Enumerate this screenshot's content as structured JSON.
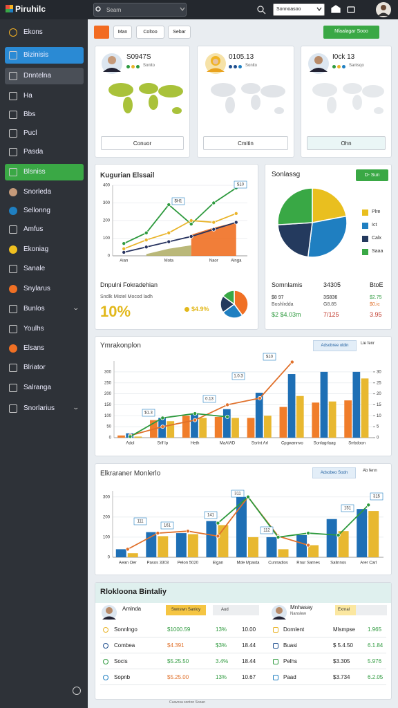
{
  "header": {
    "logo": "Piruhilc",
    "search": "Searn",
    "select": "Sonnoasoo"
  },
  "sidebar": [
    "Ekons",
    "Bizinisis",
    "Dnntelna",
    "Ha",
    "Bbs",
    "Pucl",
    "Pasda",
    "Blsniss",
    "Snorleda",
    "Sellonng",
    "Amfus",
    "Ekoniag",
    "Sanale",
    "Snylarus",
    "Bunlos",
    "Youlhs",
    "Elsans",
    "Blriator",
    "Salranga",
    "Snorlarius"
  ],
  "toolbar": {
    "buttons": [
      "Man",
      "Coltoo",
      "Sebar"
    ],
    "action": "Nfaalagar Sooo"
  },
  "profile_cards": [
    {
      "value": "S0947S",
      "sub": "Sonlto",
      "button": "Conuor"
    },
    {
      "value": "0105.13",
      "sub": "Sonlto",
      "button": "Cmitin"
    },
    {
      "value": "I0ck 13",
      "sub": "Sanlsqo",
      "button": "Ohn"
    }
  ],
  "panel": {
    "title": "Dnpulni Fokradehian",
    "subtitle": "Sndlk Mistel Mocod ladh",
    "big": "10%",
    "note": "$4.9%"
  },
  "summary": {
    "title": "Sonlassg",
    "button": "D- Sun",
    "table": [
      [
        "Somnlamis",
        "34305",
        "BtoE"
      ],
      [
        "$8 97",
        "3S836",
        "$2.75"
      ],
      [
        "Boshlrdda",
        "G8.85",
        "$0.ic"
      ],
      [
        "$2 $4.03m",
        "7/125",
        "3.95"
      ]
    ]
  },
  "people": {
    "title": "Rlokloona Bintaliy",
    "profiles": [
      {
        "name": "Amlnda",
        "tag": "Swnswn Sanloy",
        "extra": "Aud"
      },
      {
        "name": "Mnhasay",
        "sub": "Nanslew",
        "tag": "Exrnal"
      }
    ],
    "rows": [
      [
        "Sonnlngo",
        "$1000.59",
        "13%",
        "10.00",
        "Dornlent",
        "Mlsmpse",
        "1.965"
      ],
      [
        "Combea",
        "$4.391",
        "$3%",
        "18.44",
        "Buasi",
        "$ 5.4.50",
        "6.1.84"
      ],
      [
        "Socis",
        "$5.25.50",
        "3.4%",
        "18.44",
        "Pelhs",
        "$3.305",
        "5.976"
      ],
      [
        "Sopnb",
        "$5.25.00",
        "13%",
        "10.67",
        "Paad",
        "$3.734",
        "6.2.05"
      ]
    ]
  },
  "footer": "Cuavosa sonton Sooan",
  "chart_data": [
    {
      "type": "line",
      "title": "Kugurian Elssail",
      "categories": [
        "Aian",
        null,
        "Mota",
        null,
        "Naor",
        "Alnga"
      ],
      "ylim": [
        0,
        400
      ],
      "yticks": [
        0,
        100,
        200,
        300,
        400
      ],
      "annotations": [
        "$10",
        "$H1"
      ],
      "series": [
        {
          "color": "#b3b06a",
          "area": true,
          "values": [
            null,
            10,
            40,
            60,
            null,
            null
          ]
        },
        {
          "color": "#f07024",
          "area": true,
          "values": [
            null,
            null,
            null,
            120,
            160,
            190
          ]
        },
        {
          "color": "#2e9a3e",
          "values": [
            70,
            130,
            290,
            180,
            300,
            385
          ]
        },
        {
          "color": "#e9b42a",
          "values": [
            40,
            90,
            130,
            200,
            190,
            240
          ]
        },
        {
          "color": "#27335f",
          "values": [
            20,
            50,
            80,
            110,
            150,
            190
          ]
        }
      ]
    },
    {
      "type": "pie",
      "values": [
        40,
        25,
        20,
        15
      ],
      "colors": [
        "#f07024",
        "#1f7fc1",
        "#243a5e",
        "#39a845"
      ]
    },
    {
      "type": "combo",
      "title": "Ymrakonplon",
      "controls": [
        "Adsobree oldin",
        "Lie fenr"
      ],
      "categories": [
        "Adol",
        "Srlf Ip",
        "Heth",
        "MaAIAD",
        "Ssrlnt Arl",
        "Cpgwannvo",
        "Sonlagrlaag",
        "Srrbdoon"
      ],
      "ylim": [
        0,
        350
      ],
      "yticks": [
        0,
        50,
        100,
        150,
        200,
        250,
        300
      ],
      "y2lim": [
        0,
        35
      ],
      "y2ticks": [
        0,
        5,
        10,
        15,
        20,
        25,
        30
      ],
      "annotations": [
        "$10",
        "1.0.3",
        "$1.3",
        "0.13"
      ],
      "series": [
        {
          "kind": "bar",
          "color": "#f07d2a",
          "values": [
            10,
            80,
            100,
            95,
            90,
            140,
            160,
            170
          ]
        },
        {
          "kind": "bar",
          "color": "#1e6fb5",
          "values": [
            20,
            90,
            110,
            130,
            205,
            290,
            300,
            300
          ]
        },
        {
          "kind": "bar",
          "color": "#e8b830",
          "values": [
            5,
            75,
            90,
            90,
            100,
            190,
            165,
            270
          ]
        },
        {
          "color": "#e0702a",
          "values": [
            10,
            50,
            80,
            150,
            180,
            345,
            null,
            null
          ]
        },
        {
          "color": "#2e9a3e",
          "values": [
            5,
            90,
            110,
            95,
            null,
            null,
            null,
            null
          ]
        }
      ]
    },
    {
      "type": "combo",
      "title": "Elkraraner Monlerlo",
      "controls": [
        "Adsobeo Sodn",
        "Ab fenn"
      ],
      "categories": [
        "Aean Oer",
        "Pasos 3303",
        "Pelon 5020",
        "Elgan",
        "Mde Mpaxta",
        "Cunnadios",
        "Rnur Sarnes",
        "Salinnos",
        "Arer Carl"
      ],
      "ylim": [
        0,
        330
      ],
      "yticks": [
        0,
        100,
        200,
        300
      ],
      "annotations": [
        "311",
        "111",
        "161",
        "141",
        "112",
        "151",
        "315"
      ],
      "series": [
        {
          "kind": "bar",
          "color": "#1e6fb5",
          "values": [
            40,
            125,
            120,
            180,
            300,
            100,
            110,
            190,
            240
          ]
        },
        {
          "kind": "bar",
          "color": "#e8b830",
          "values": [
            20,
            105,
            115,
            160,
            100,
            40,
            60,
            130,
            230
          ]
        },
        {
          "color": "#e0702a",
          "values": [
            40,
            120,
            130,
            105,
            300,
            105,
            60,
            null,
            null
          ]
        },
        {
          "color": "#2e9a3e",
          "values": [
            null,
            null,
            null,
            170,
            300,
            100,
            120,
            110,
            260
          ]
        }
      ]
    },
    {
      "type": "pie",
      "title": "Sonlassg pie",
      "categories": [
        "Plre",
        "Ict",
        "Calx",
        "Saaa"
      ],
      "values": [
        22,
        30,
        22,
        26
      ],
      "colors": [
        "#e9bf1f",
        "#1f7fc1",
        "#243a5e",
        "#39a845"
      ]
    }
  ]
}
